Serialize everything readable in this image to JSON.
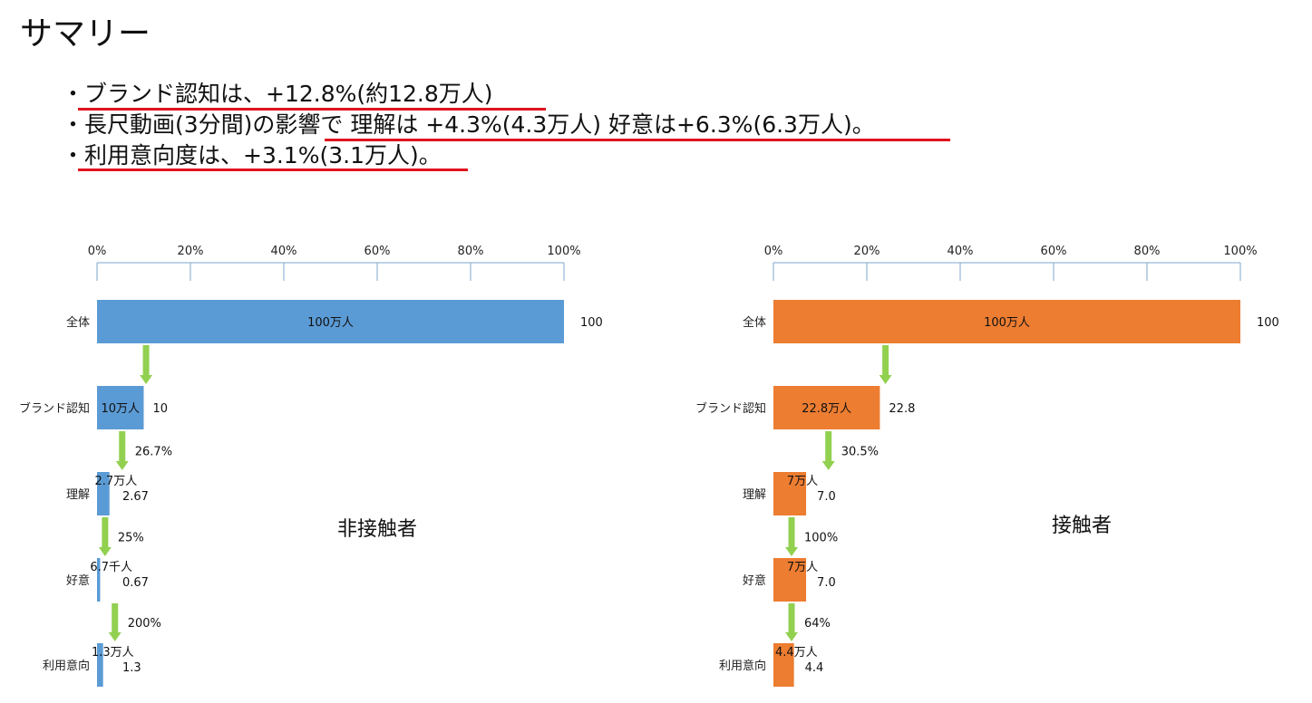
{
  "title": "サマリー",
  "bullets": [
    "・ブランド認知は、+12.8%(約12.8万人)",
    "・長尺動画(3分間)の影響で 理解は +4.3%(4.3万人) 好意は+6.3%(6.3万人)。",
    "・利用意向度は、+3.1%(3.1万人)。"
  ],
  "colors": {
    "nonexposed": "#5b9bd5",
    "exposed": "#ed7d31",
    "arrow": "#92d050",
    "underline": "#e0141e",
    "axis": "#7fa7cf"
  },
  "chart_data": [
    {
      "type": "bar",
      "title": "非接触者",
      "xlim": [
        0,
        100
      ],
      "ticks": [
        "0%",
        "20%",
        "40%",
        "60%",
        "80%",
        "100%"
      ],
      "categories": [
        "全体",
        "ブランド認知",
        "理解",
        "好意",
        "利用意向"
      ],
      "values": [
        100,
        10,
        2.67,
        0.67,
        1.3
      ],
      "value_labels": [
        "100",
        "10",
        "2.67",
        "0.67",
        "1.3"
      ],
      "bar_labels": [
        "100万人",
        "10万人",
        "2.7万人",
        "6.7千人",
        "1.3万人"
      ],
      "conversion_rates": [
        "26.7%",
        "25%",
        "200%"
      ],
      "grid": false
    },
    {
      "type": "bar",
      "title": "接触者",
      "xlim": [
        0,
        100
      ],
      "ticks": [
        "0%",
        "20%",
        "40%",
        "60%",
        "80%",
        "100%"
      ],
      "categories": [
        "全体",
        "ブランド認知",
        "理解",
        "好意",
        "利用意向"
      ],
      "values": [
        100,
        22.8,
        7.0,
        7.0,
        4.4
      ],
      "value_labels": [
        "100",
        "22.8",
        "7.0",
        "7.0",
        "4.4"
      ],
      "bar_labels": [
        "100万人",
        "22.8万人",
        "7万人",
        "7万人",
        "4.4万人"
      ],
      "conversion_rates": [
        "30.5%",
        "100%",
        "64%"
      ],
      "grid": false
    }
  ]
}
